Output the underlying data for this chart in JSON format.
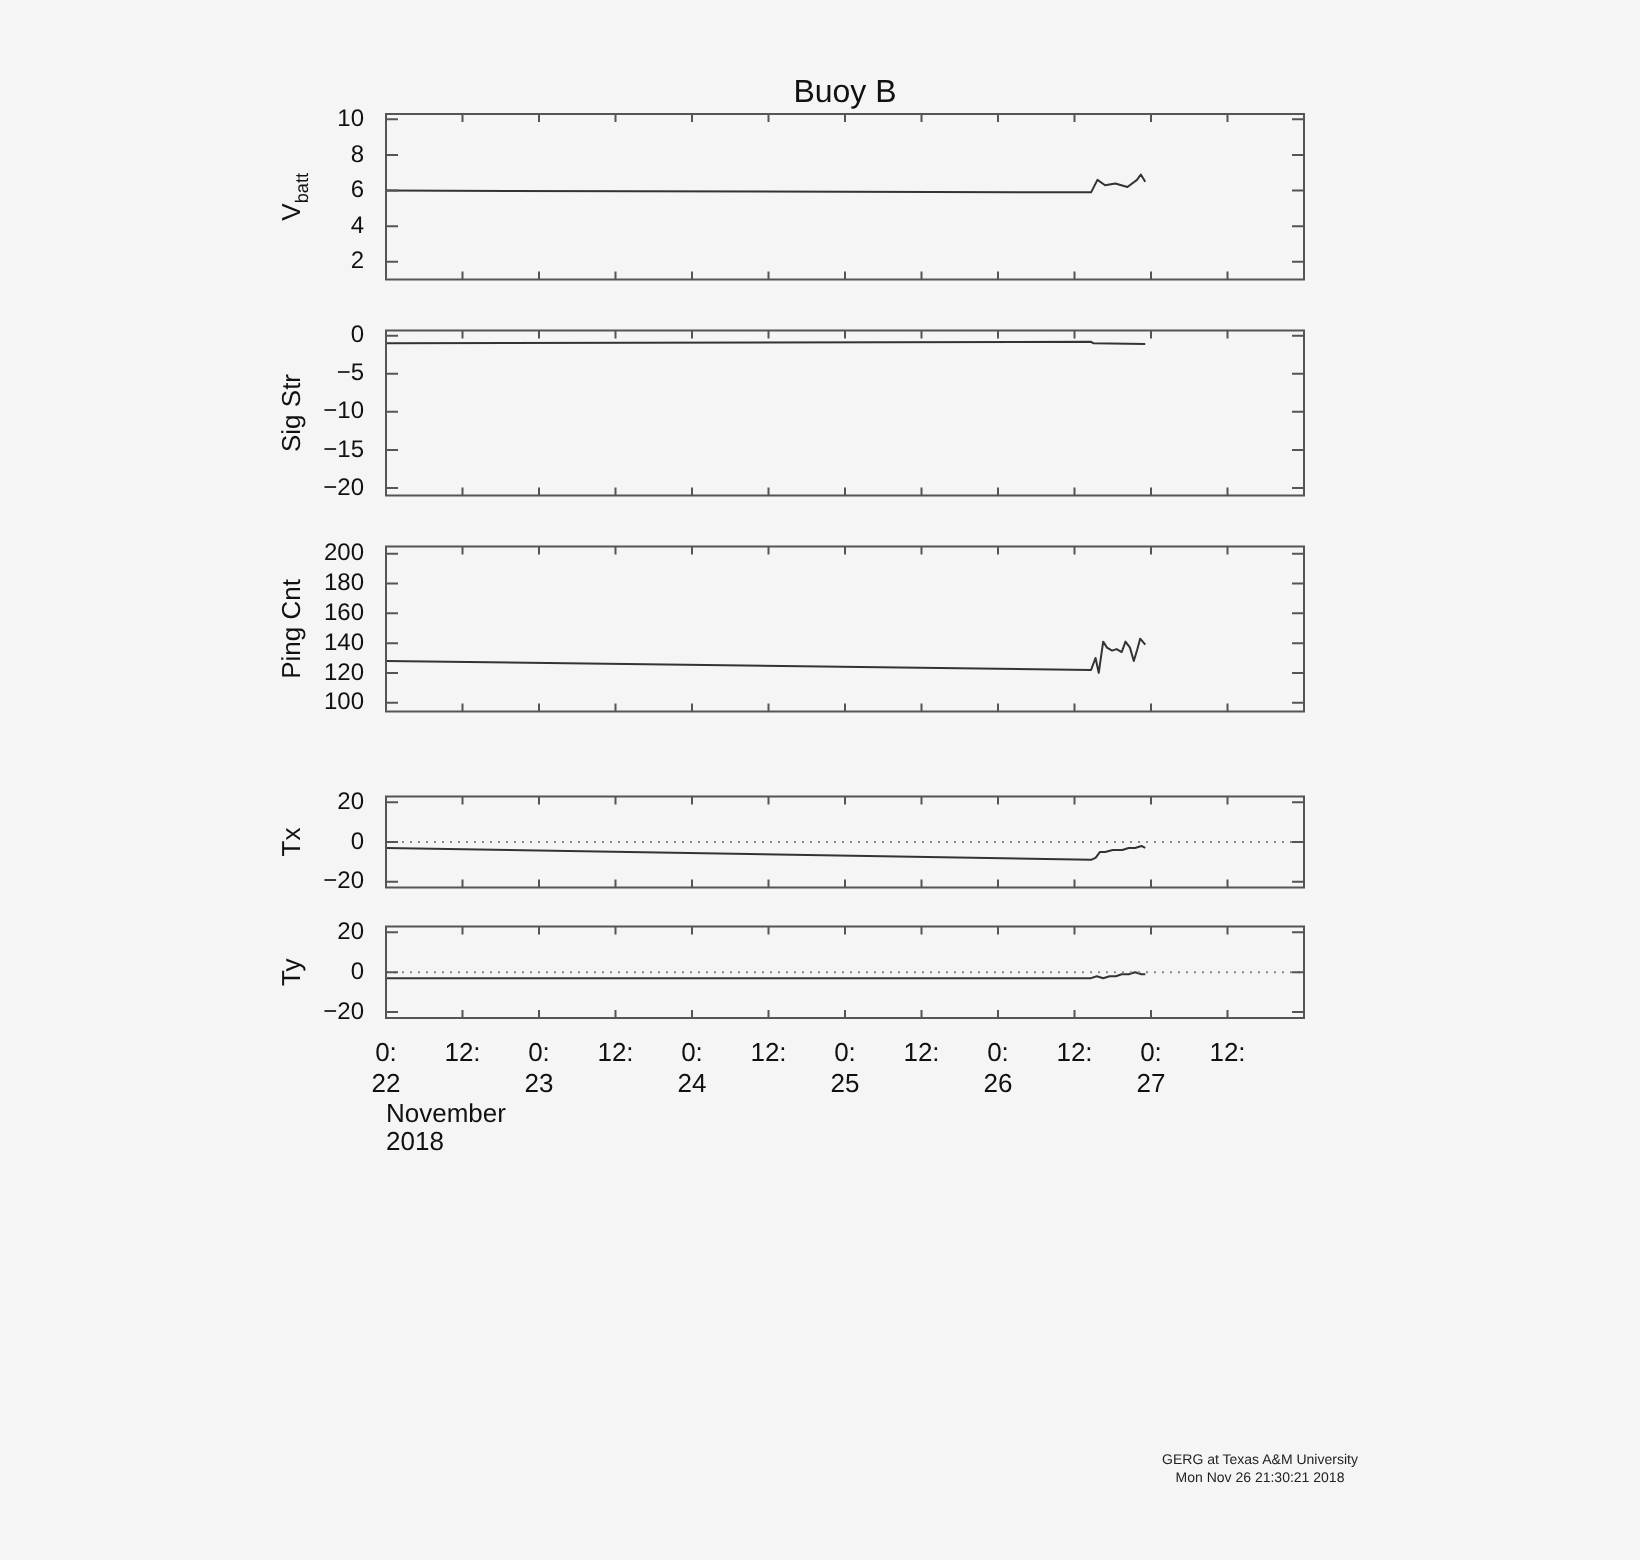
{
  "chart_data": [
    {
      "type": "line",
      "title": "Buoy B",
      "ylabel": "V$_{batt}$",
      "tick_labels": "y",
      "xlim": [
        "2018-11-22T00:00",
        "2018-11-28T00:00"
      ],
      "ylim": [
        1,
        10.3
      ],
      "yticks": [
        2,
        4,
        6,
        8,
        10
      ],
      "xticks": [
        {
          "value": "2018-11-22T00:00",
          "label": null
        },
        {
          "value": "2018-11-22T12:00",
          "label": null
        },
        {
          "value": "2018-11-23T00:00",
          "label": null
        },
        {
          "value": "2018-11-23T12:00",
          "label": null
        },
        {
          "value": "2018-11-24T00:00",
          "label": null
        },
        {
          "value": "2018-11-24T12:00",
          "label": null
        },
        {
          "value": "2018-11-25T00:00",
          "label": null
        },
        {
          "value": "2018-11-25T12:00",
          "label": null
        },
        {
          "value": "2018-11-26T00:00",
          "label": null
        },
        {
          "value": "2018-11-26T12:00",
          "label": null
        },
        {
          "value": "2018-11-27T00:00",
          "label": null
        },
        {
          "value": "2018-11-27T12:00",
          "label": null
        }
      ],
      "series": [
        {
          "color": "#333333",
          "x": [
            "2018-11-22T00:00",
            "2018-11-26T14:36",
            "2018-11-26T15:36",
            "2018-11-26T16:48",
            "2018-11-26T18:24",
            "2018-11-26T20:18",
            "2018-11-26T21:48",
            "2018-11-26T22:24",
            "2018-11-26T23:06"
          ],
          "values": [
            6.0,
            5.9,
            6.6,
            6.3,
            6.4,
            6.2,
            6.6,
            6.9,
            6.5
          ]
        }
      ]
    },
    {
      "type": "line",
      "ylabel": "Sig Str",
      "tick_labels": "y",
      "xlim": [
        "2018-11-22T00:00",
        "2018-11-28T00:00"
      ],
      "ylim": [
        -21,
        0.7
      ],
      "yticks": [
        -20,
        -15,
        -10,
        -5,
        0
      ],
      "xticks": [
        {
          "value": "2018-11-22T00:00",
          "label": null
        },
        {
          "value": "2018-11-22T12:00",
          "label": null
        },
        {
          "value": "2018-11-23T00:00",
          "label": null
        },
        {
          "value": "2018-11-23T12:00",
          "label": null
        },
        {
          "value": "2018-11-24T00:00",
          "label": null
        },
        {
          "value": "2018-11-24T12:00",
          "label": null
        },
        {
          "value": "2018-11-25T00:00",
          "label": null
        },
        {
          "value": "2018-11-25T12:00",
          "label": null
        },
        {
          "value": "2018-11-26T00:00",
          "label": null
        },
        {
          "value": "2018-11-26T12:00",
          "label": null
        },
        {
          "value": "2018-11-27T00:00",
          "label": null
        },
        {
          "value": "2018-11-27T12:00",
          "label": null
        }
      ],
      "series": [
        {
          "color": "#333333",
          "x": [
            "2018-11-22T00:00",
            "2018-11-26T14:36",
            "2018-11-26T15:00",
            "2018-11-26T23:06"
          ],
          "values": [
            -1.0,
            -0.8,
            -1.0,
            -1.1
          ]
        }
      ]
    },
    {
      "type": "line",
      "ylabel": "Ping Cnt",
      "tick_labels": "y",
      "xlim": [
        "2018-11-22T00:00",
        "2018-11-28T00:00"
      ],
      "ylim": [
        94,
        205
      ],
      "yticks": [
        100,
        120,
        140,
        160,
        180,
        200
      ],
      "xticks": [
        {
          "value": "2018-11-22T00:00",
          "label": null
        },
        {
          "value": "2018-11-22T12:00",
          "label": null
        },
        {
          "value": "2018-11-23T00:00",
          "label": null
        },
        {
          "value": "2018-11-23T12:00",
          "label": null
        },
        {
          "value": "2018-11-24T00:00",
          "label": null
        },
        {
          "value": "2018-11-24T12:00",
          "label": null
        },
        {
          "value": "2018-11-25T00:00",
          "label": null
        },
        {
          "value": "2018-11-25T12:00",
          "label": null
        },
        {
          "value": "2018-11-26T00:00",
          "label": null
        },
        {
          "value": "2018-11-26T12:00",
          "label": null
        },
        {
          "value": "2018-11-27T00:00",
          "label": null
        },
        {
          "value": "2018-11-27T12:00",
          "label": null
        }
      ],
      "series": [
        {
          "color": "#333333",
          "x": [
            "2018-11-22T00:00",
            "2018-11-26T14:36",
            "2018-11-26T15:18",
            "2018-11-26T15:48",
            "2018-11-26T16:30",
            "2018-11-26T17:06",
            "2018-11-26T17:54",
            "2018-11-26T18:36",
            "2018-11-26T19:24",
            "2018-11-26T20:00",
            "2018-11-26T20:42",
            "2018-11-26T21:18",
            "2018-11-26T21:48",
            "2018-11-26T22:18",
            "2018-11-26T23:06"
          ],
          "values": [
            128,
            122,
            130,
            120,
            141,
            137,
            135,
            136,
            134,
            141,
            137,
            128,
            135,
            143,
            139
          ]
        }
      ]
    },
    {
      "type": "line",
      "ylabel": "Tx",
      "tick_labels": "y",
      "xlim": [
        "2018-11-22T00:00",
        "2018-11-28T00:00"
      ],
      "ylim": [
        -23,
        23
      ],
      "yticks": [
        -20,
        0,
        20
      ],
      "xticks": [
        {
          "value": "2018-11-22T00:00",
          "label": null
        },
        {
          "value": "2018-11-22T12:00",
          "label": null
        },
        {
          "value": "2018-11-23T00:00",
          "label": null
        },
        {
          "value": "2018-11-23T12:00",
          "label": null
        },
        {
          "value": "2018-11-24T00:00",
          "label": null
        },
        {
          "value": "2018-11-24T12:00",
          "label": null
        },
        {
          "value": "2018-11-25T00:00",
          "label": null
        },
        {
          "value": "2018-11-25T12:00",
          "label": null
        },
        {
          "value": "2018-11-26T00:00",
          "label": null
        },
        {
          "value": "2018-11-26T12:00",
          "label": null
        },
        {
          "value": "2018-11-27T00:00",
          "label": null
        },
        {
          "value": "2018-11-27T12:00",
          "label": null
        }
      ],
      "ref_lines": [
        {
          "axis": "y",
          "value": 0,
          "color": "#888888",
          "line_style": "dotted"
        }
      ],
      "series": [
        {
          "color": "#333333",
          "x": [
            "2018-11-22T00:00",
            "2018-11-26T14:36",
            "2018-11-26T15:18",
            "2018-11-26T16:00",
            "2018-11-26T16:48",
            "2018-11-26T18:00",
            "2018-11-26T19:30",
            "2018-11-26T20:30",
            "2018-11-26T21:30",
            "2018-11-26T22:30",
            "2018-11-26T23:06"
          ],
          "values": [
            -3,
            -9,
            -8,
            -5,
            -5,
            -4,
            -4,
            -3,
            -3,
            -2,
            -3
          ]
        }
      ]
    },
    {
      "type": "line",
      "ylabel": "Ty",
      "xlabel": "November 2018",
      "xlim": [
        "2018-11-22T00:00",
        "2018-11-28T00:00"
      ],
      "ylim": [
        -23,
        23
      ],
      "yticks": [
        -20,
        0,
        20
      ],
      "xticks": [
        {
          "value": "2018-11-22T00:00",
          "label": "0:\n22"
        },
        {
          "value": "2018-11-22T12:00",
          "label": "12:"
        },
        {
          "value": "2018-11-23T00:00",
          "label": "0:\n23"
        },
        {
          "value": "2018-11-23T12:00",
          "label": "12:"
        },
        {
          "value": "2018-11-24T00:00",
          "label": "0:\n24"
        },
        {
          "value": "2018-11-24T12:00",
          "label": "12:"
        },
        {
          "value": "2018-11-25T00:00",
          "label": "0:\n25"
        },
        {
          "value": "2018-11-25T12:00",
          "label": "12:"
        },
        {
          "value": "2018-11-26T00:00",
          "label": "0:\n26"
        },
        {
          "value": "2018-11-26T12:00",
          "label": "12:"
        },
        {
          "value": "2018-11-27T00:00",
          "label": "0:\n27"
        },
        {
          "value": "2018-11-27T12:00",
          "label": "12:"
        }
      ],
      "ref_lines": [
        {
          "axis": "y",
          "value": 0,
          "color": "#888888",
          "line_style": "dotted"
        }
      ],
      "annotations": [
        "GERG at Texas A&M University",
        "Mon Nov 26 21:30:21 2018"
      ],
      "series": [
        {
          "color": "#333333",
          "x": [
            "2018-11-22T00:00",
            "2018-11-26T14:36",
            "2018-11-26T15:30",
            "2018-11-26T16:30",
            "2018-11-26T17:30",
            "2018-11-26T18:30",
            "2018-11-26T19:24",
            "2018-11-26T20:30",
            "2018-11-26T21:30",
            "2018-11-26T22:30",
            "2018-11-26T23:06"
          ],
          "values": [
            -3,
            -3,
            -2,
            -3,
            -2,
            -2,
            -1,
            -1,
            0,
            -1,
            -1
          ]
        }
      ]
    }
  ]
}
